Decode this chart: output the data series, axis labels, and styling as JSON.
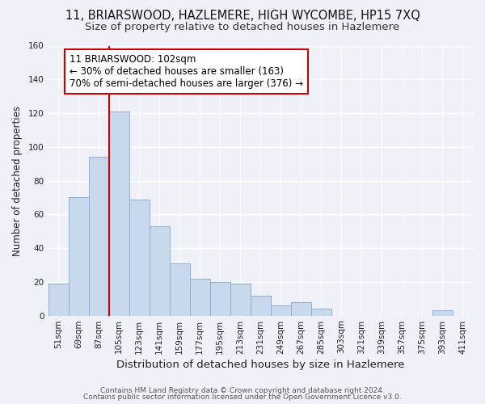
{
  "title": "11, BRIARSWOOD, HAZLEMERE, HIGH WYCOMBE, HP15 7XQ",
  "subtitle": "Size of property relative to detached houses in Hazlemere",
  "xlabel": "Distribution of detached houses by size in Hazlemere",
  "ylabel": "Number of detached properties",
  "footer_line1": "Contains HM Land Registry data © Crown copyright and database right 2024.",
  "footer_line2": "Contains public sector information licensed under the Open Government Licence v3.0.",
  "bar_labels": [
    "51sqm",
    "69sqm",
    "87sqm",
    "105sqm",
    "123sqm",
    "141sqm",
    "159sqm",
    "177sqm",
    "195sqm",
    "213sqm",
    "231sqm",
    "249sqm",
    "267sqm",
    "285sqm",
    "303sqm",
    "321sqm",
    "339sqm",
    "357sqm",
    "375sqm",
    "393sqm",
    "411sqm"
  ],
  "bar_values": [
    19,
    70,
    94,
    121,
    69,
    53,
    31,
    22,
    20,
    19,
    12,
    6,
    8,
    4,
    0,
    0,
    0,
    0,
    0,
    3,
    0
  ],
  "bar_color": "#c8d8ed",
  "bar_edge_color": "#90aed0",
  "vline_color": "#cc0000",
  "annotation_line1": "11 BRIARSWOOD: 102sqm",
  "annotation_line2": "← 30% of detached houses are smaller (163)",
  "annotation_line3": "70% of semi-detached houses are larger (376) →",
  "annotation_boxcolor": "white",
  "annotation_edgecolor": "#cc0000",
  "ylim": [
    0,
    160
  ],
  "yticks": [
    0,
    20,
    40,
    60,
    80,
    100,
    120,
    140,
    160
  ],
  "background_color": "#eef2f8",
  "title_fontsize": 10.5,
  "subtitle_fontsize": 9.5,
  "annotation_fontsize": 8.5,
  "xlabel_fontsize": 9.5,
  "ylabel_fontsize": 8.5,
  "tick_fontsize": 7.5,
  "footer_fontsize": 6.5
}
